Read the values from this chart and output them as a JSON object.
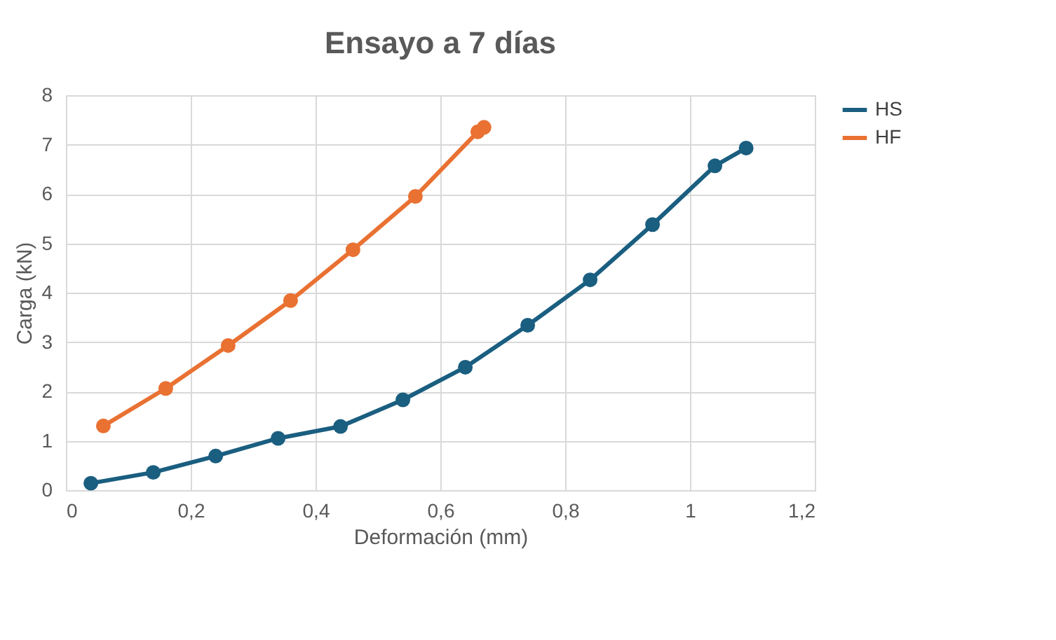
{
  "chart_data": {
    "type": "line",
    "title": "Ensayo a 7 días",
    "xlabel": "Deformación (mm)",
    "ylabel": "Carga (kN)",
    "xlim": [
      0,
      1.2
    ],
    "xticks": [
      {
        "value": 0,
        "label": "0"
      },
      {
        "value": 0.2,
        "label": "0,2"
      },
      {
        "value": 0.4,
        "label": "0,4"
      },
      {
        "value": 0.6,
        "label": "0,6"
      },
      {
        "value": 0.8,
        "label": "0,8"
      },
      {
        "value": 1,
        "label": "1"
      },
      {
        "value": 1.2,
        "label": "1,2"
      }
    ],
    "ylim": [
      0,
      8
    ],
    "yticks": [
      0,
      1,
      2,
      3,
      4,
      5,
      6,
      7,
      8
    ],
    "grid": true,
    "legend": "right",
    "marker": "circle",
    "line_style": "solid",
    "series": [
      {
        "name": "HS",
        "color": "#1a5e80",
        "x": [
          0.04,
          0.14,
          0.24,
          0.34,
          0.44,
          0.54,
          0.64,
          0.74,
          0.84,
          0.94,
          1.04,
          1.09
        ],
        "values": [
          0.14,
          0.36,
          0.69,
          1.05,
          1.29,
          1.83,
          2.49,
          3.34,
          4.26,
          5.38,
          6.57,
          6.93
        ]
      },
      {
        "name": "HF",
        "color": "#e97132",
        "x": [
          0.06,
          0.16,
          0.26,
          0.36,
          0.46,
          0.56,
          0.66,
          0.67
        ],
        "values": [
          1.3,
          2.06,
          2.93,
          3.84,
          4.87,
          5.95,
          7.26,
          7.35
        ]
      }
    ]
  }
}
